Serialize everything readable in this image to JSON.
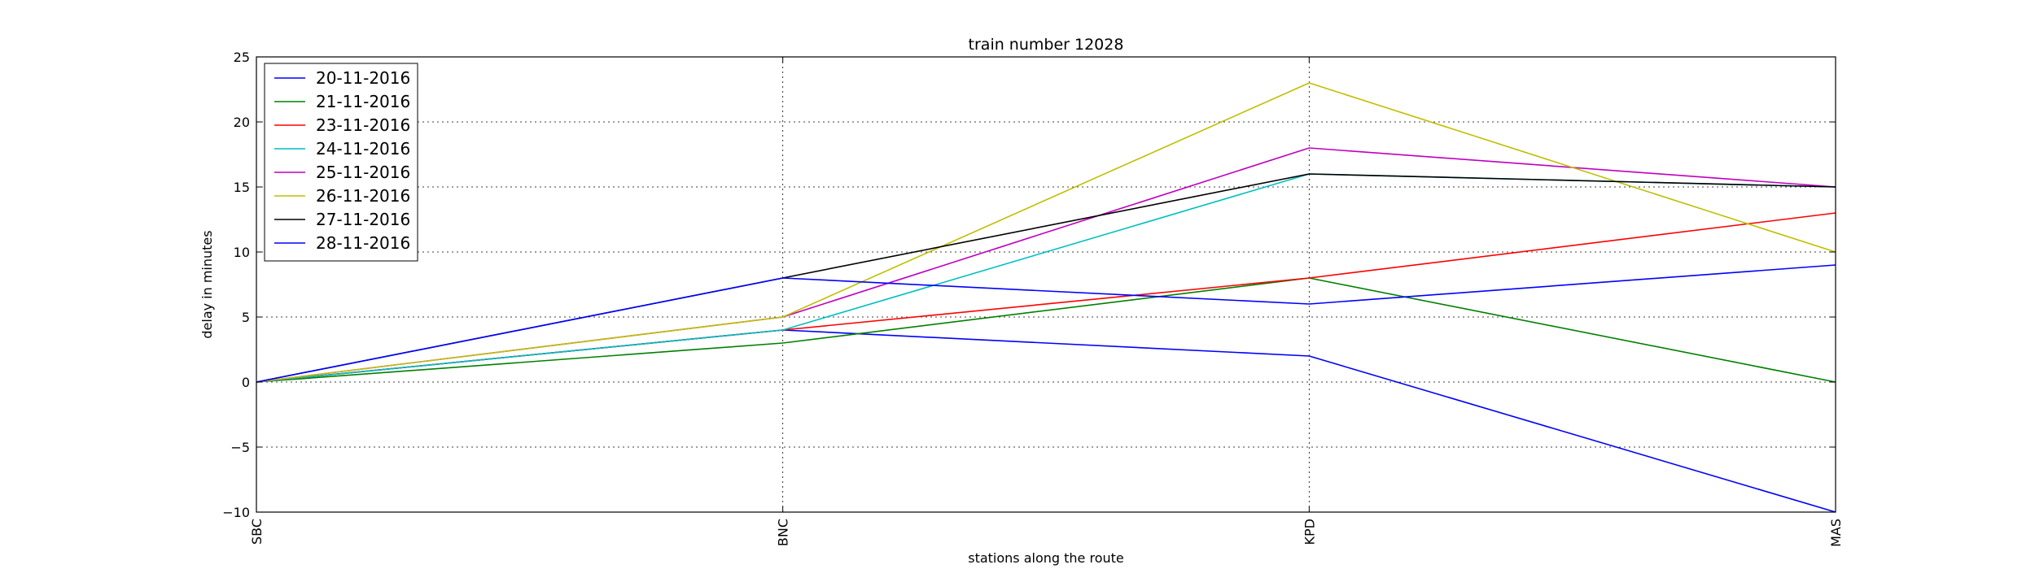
{
  "chart_data": {
    "type": "line",
    "title": "train number 12028",
    "xlabel": "stations along the route",
    "ylabel": "delay in minutes",
    "categories": [
      "SBC",
      "BNC",
      "KPD",
      "MAS"
    ],
    "ylim": [
      -10,
      25
    ],
    "yticks": [
      -10,
      -5,
      0,
      5,
      10,
      15,
      20,
      25
    ],
    "ytick_labels": [
      "−10",
      "−5",
      "0",
      "5",
      "10",
      "15",
      "20",
      "25"
    ],
    "grid": true,
    "legend_position": "top-left",
    "series": [
      {
        "name": "20-11-2016",
        "color": "#0000ff",
        "values": [
          0,
          4,
          2,
          -10
        ]
      },
      {
        "name": "21-11-2016",
        "color": "#008000",
        "values": [
          0,
          3,
          8,
          0
        ]
      },
      {
        "name": "23-11-2016",
        "color": "#ff0000",
        "values": [
          0,
          4,
          8,
          13
        ]
      },
      {
        "name": "24-11-2016",
        "color": "#00bfbf",
        "values": [
          0,
          4,
          16,
          15
        ]
      },
      {
        "name": "25-11-2016",
        "color": "#bf00bf",
        "values": [
          0,
          5,
          18,
          15
        ]
      },
      {
        "name": "26-11-2016",
        "color": "#bfbf00",
        "values": [
          0,
          5,
          23,
          10
        ]
      },
      {
        "name": "27-11-2016",
        "color": "#000000",
        "values": [
          0,
          8,
          16,
          15
        ]
      },
      {
        "name": "28-11-2016",
        "color": "#0000ff",
        "values": [
          0,
          8,
          6,
          9
        ]
      }
    ]
  }
}
